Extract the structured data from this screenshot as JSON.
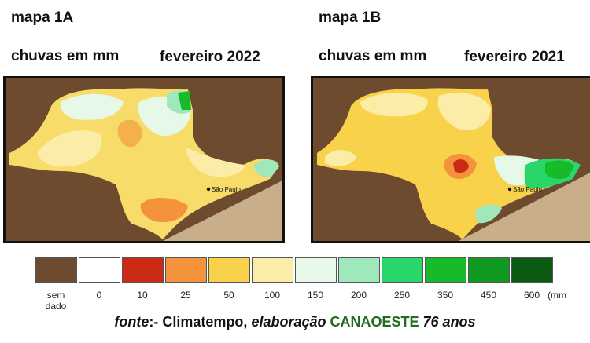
{
  "map_a": {
    "title": "mapa 1A",
    "subtitle": "chuvas em mm",
    "period": "fevereiro 2022",
    "city_label": "São Paulo"
  },
  "map_b": {
    "title": "mapa 1B",
    "subtitle": "chuvas em mm",
    "period": "fevereiro 2021",
    "city_label": "São Paulo"
  },
  "legend": {
    "items": [
      {
        "label": "sem dado",
        "color": "#6e4a2f"
      },
      {
        "label": "0",
        "color": "#ffffff"
      },
      {
        "label": "10",
        "color": "#cc2a14"
      },
      {
        "label": "25",
        "color": "#f4933c"
      },
      {
        "label": "50",
        "color": "#f8d24a"
      },
      {
        "label": "100",
        "color": "#fbeca8"
      },
      {
        "label": "150",
        "color": "#e6f8e8"
      },
      {
        "label": "200",
        "color": "#9ee8bc"
      },
      {
        "label": "250",
        "color": "#28d66a"
      },
      {
        "label": "350",
        "color": "#17bb2a"
      },
      {
        "label": "450",
        "color": "#119a22"
      },
      {
        "label": "600",
        "color": "#0b5a12"
      }
    ],
    "unit": "(mm"
  },
  "source": {
    "prefix": "fonte",
    "sep": ":- Climatempo, ",
    "elab": "elaboração",
    "brand": "CANAOESTE",
    "anniv": "76 anos"
  }
}
